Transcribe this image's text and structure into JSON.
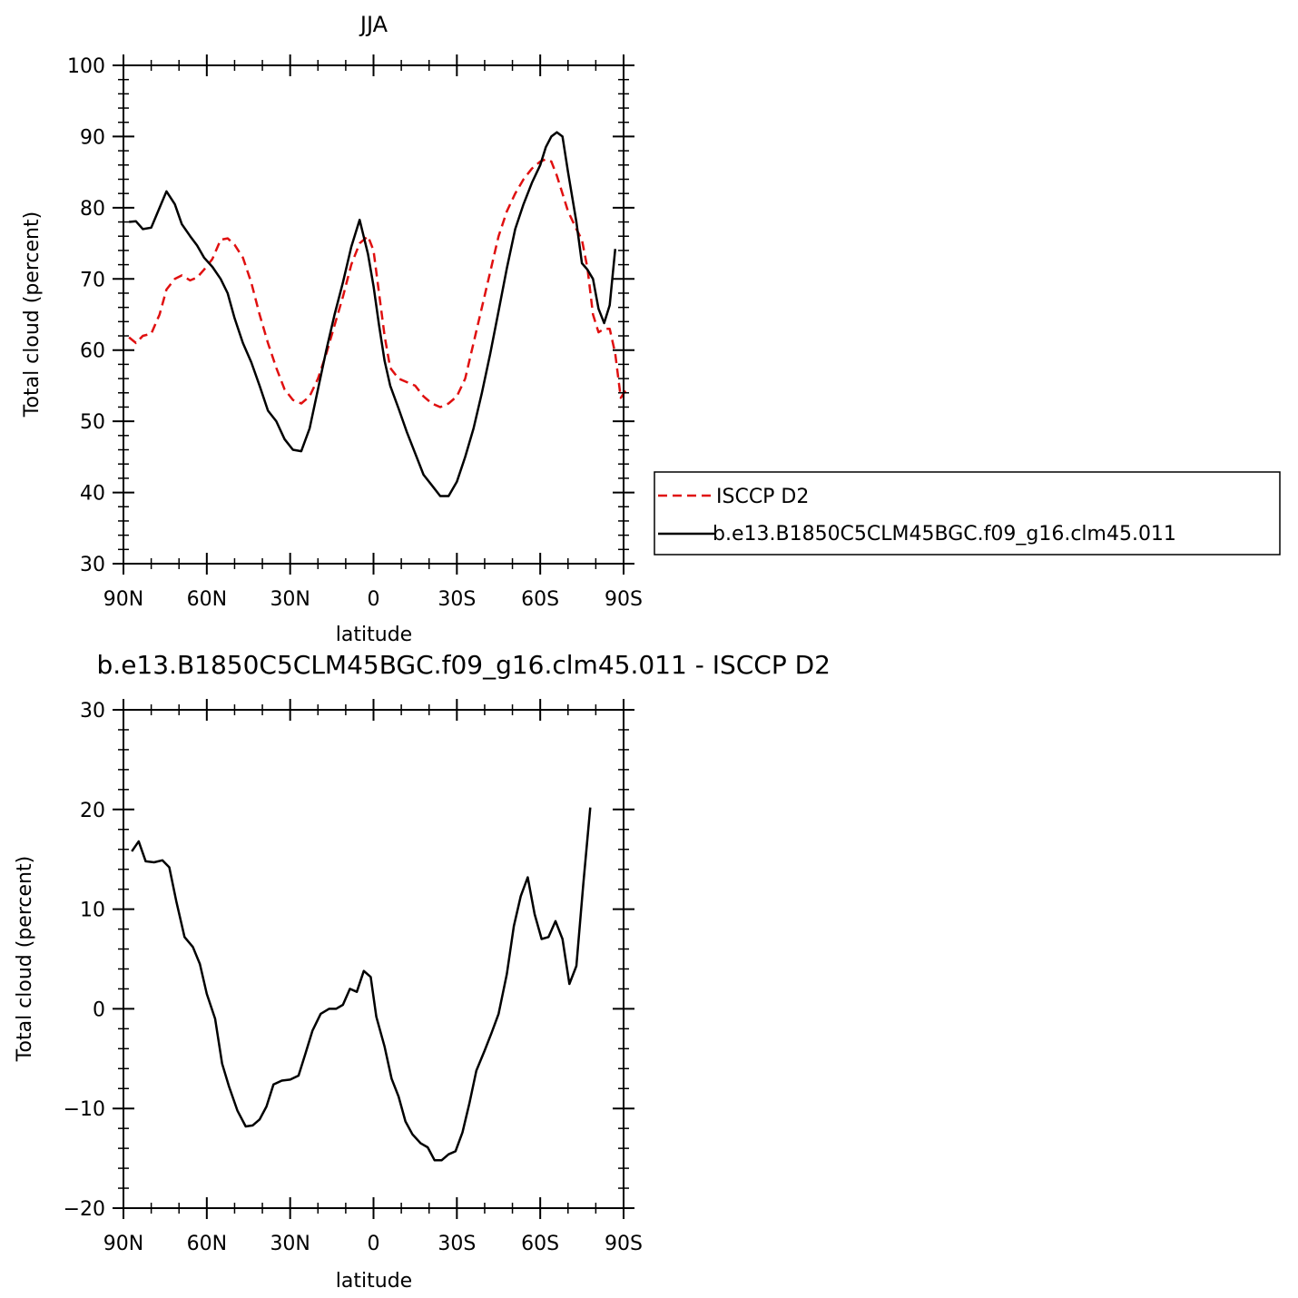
{
  "chart_data": [
    {
      "type": "line",
      "title": "JJA",
      "xlabel": "latitude",
      "ylabel": "Total cloud (percent)",
      "xlim": [
        90,
        -90
      ],
      "ylim": [
        30,
        100
      ],
      "y_ticks": [
        30,
        40,
        50,
        60,
        70,
        80,
        90,
        100
      ],
      "x_ticks": [
        {
          "value": 90,
          "label": "90N"
        },
        {
          "value": 60,
          "label": "60N"
        },
        {
          "value": 30,
          "label": "30N"
        },
        {
          "value": 0,
          "label": "0"
        },
        {
          "value": -30,
          "label": "30S"
        },
        {
          "value": -60,
          "label": "60S"
        },
        {
          "value": -90,
          "label": "90S"
        }
      ],
      "legend": "right",
      "series": [
        {
          "name": "ISCCP D2",
          "color": "#e01010",
          "style": "dashed",
          "points": [
            [
              88,
              61.8
            ],
            [
              85.5,
              61
            ],
            [
              83,
              62
            ],
            [
              80,
              62.3
            ],
            [
              77,
              65
            ],
            [
              74.5,
              68.5
            ],
            [
              71.5,
              70
            ],
            [
              69,
              70.5
            ],
            [
              66,
              69.8
            ],
            [
              63.5,
              70.2
            ],
            [
              61,
              71.3
            ],
            [
              58,
              72.8
            ],
            [
              55,
              75.5
            ],
            [
              52.5,
              75.7
            ],
            [
              50,
              74.8
            ],
            [
              47,
              73
            ],
            [
              44,
              69.5
            ],
            [
              41,
              65
            ],
            [
              38,
              61
            ],
            [
              35,
              57.5
            ],
            [
              32,
              54.5
            ],
            [
              29,
              53
            ],
            [
              26,
              52.5
            ],
            [
              23,
              53.5
            ],
            [
              20,
              56
            ],
            [
              17,
              59.5
            ],
            [
              14,
              63.5
            ],
            [
              11,
              67.5
            ],
            [
              8,
              72
            ],
            [
              5,
              75
            ],
            [
              2,
              76
            ],
            [
              0,
              74
            ],
            [
              -2,
              68
            ],
            [
              -4,
              62
            ],
            [
              -6,
              57.5
            ],
            [
              -9,
              56
            ],
            [
              -12,
              55.5
            ],
            [
              -15,
              55
            ],
            [
              -18,
              53.5
            ],
            [
              -21,
              52.5
            ],
            [
              -24,
              52
            ],
            [
              -27,
              52.5
            ],
            [
              -30,
              53.5
            ],
            [
              -33,
              56
            ],
            [
              -36,
              61
            ],
            [
              -39,
              66
            ],
            [
              -42,
              71
            ],
            [
              -45,
              76
            ],
            [
              -48,
              79.5
            ],
            [
              -51,
              82
            ],
            [
              -54,
              84
            ],
            [
              -57,
              85.5
            ],
            [
              -60,
              86.5
            ],
            [
              -62,
              86.8
            ],
            [
              -64,
              86.5
            ],
            [
              -66,
              84.5
            ],
            [
              -68,
              82
            ],
            [
              -70,
              79.5
            ],
            [
              -73,
              77
            ],
            [
              -75,
              75.5
            ],
            [
              -77,
              71.5
            ],
            [
              -79,
              65
            ],
            [
              -81,
              62.5
            ],
            [
              -83,
              63
            ],
            [
              -85,
              63
            ],
            [
              -87,
              59.5
            ],
            [
              -89,
              53.3
            ],
            [
              -91,
              54.5
            ]
          ]
        },
        {
          "name": "b.e13.B1850C5CLM45BGC.f09_g16.clm45.011",
          "color": "#000000",
          "style": "solid",
          "points": [
            [
              88,
              78
            ],
            [
              85.5,
              78.1
            ],
            [
              83,
              77
            ],
            [
              80,
              77.2
            ],
            [
              77,
              80
            ],
            [
              74.5,
              82.3
            ],
            [
              71.5,
              80.5
            ],
            [
              69,
              77.7
            ],
            [
              66,
              76
            ],
            [
              63.5,
              74.7
            ],
            [
              61,
              73
            ],
            [
              58,
              71.7
            ],
            [
              55,
              70
            ],
            [
              52.5,
              68
            ],
            [
              50,
              64.5
            ],
            [
              47,
              61
            ],
            [
              44,
              58.3
            ],
            [
              41,
              55
            ],
            [
              38,
              51.5
            ],
            [
              35,
              50
            ],
            [
              32,
              47.5
            ],
            [
              29,
              46
            ],
            [
              26,
              45.8
            ],
            [
              23,
              49
            ],
            [
              20,
              54.5
            ],
            [
              17,
              60
            ],
            [
              14,
              65
            ],
            [
              11,
              69.5
            ],
            [
              8,
              74.5
            ],
            [
              5,
              78.3
            ],
            [
              2,
              73.5
            ],
            [
              0,
              69
            ],
            [
              -2,
              63.5
            ],
            [
              -4,
              58.5
            ],
            [
              -6,
              55
            ],
            [
              -9,
              51.8
            ],
            [
              -12,
              48.5
            ],
            [
              -15,
              45.5
            ],
            [
              -18,
              42.5
            ],
            [
              -21,
              41
            ],
            [
              -24,
              39.5
            ],
            [
              -27,
              39.5
            ],
            [
              -30,
              41.5
            ],
            [
              -33,
              45
            ],
            [
              -36,
              49
            ],
            [
              -39,
              54
            ],
            [
              -42,
              59.5
            ],
            [
              -45,
              65.5
            ],
            [
              -48,
              71.5
            ],
            [
              -51,
              77
            ],
            [
              -54,
              80.5
            ],
            [
              -57,
              83.5
            ],
            [
              -60,
              86
            ],
            [
              -62,
              88.5
            ],
            [
              -64,
              90
            ],
            [
              -66,
              90.6
            ],
            [
              -68,
              90
            ],
            [
              -70,
              85
            ],
            [
              -73,
              78
            ],
            [
              -75,
              72.2
            ],
            [
              -77,
              71.3
            ],
            [
              -79,
              70
            ],
            [
              -81,
              65.8
            ],
            [
              -83,
              63.8
            ],
            [
              -85,
              66.3
            ],
            [
              -87,
              74.2
            ]
          ]
        }
      ]
    },
    {
      "type": "line",
      "title": "b.e13.B1850C5CLM45BGC.f09_g16.clm45.011 - ISCCP D2",
      "xlabel": "latitude",
      "ylabel": "Total cloud (percent)",
      "xlim": [
        90,
        -90
      ],
      "ylim": [
        -20,
        30
      ],
      "y_ticks": [
        -20,
        -10,
        0,
        10,
        20,
        30
      ],
      "y_tick_labels": [
        "−20",
        "−10",
        "0",
        "10",
        "20",
        "30"
      ],
      "x_ticks": [
        {
          "value": 90,
          "label": "90N"
        },
        {
          "value": 60,
          "label": "60N"
        },
        {
          "value": 30,
          "label": "30N"
        },
        {
          "value": 0,
          "label": "0"
        },
        {
          "value": -30,
          "label": "30S"
        },
        {
          "value": -60,
          "label": "60S"
        },
        {
          "value": -90,
          "label": "90S"
        }
      ],
      "series": [
        {
          "color": "#000000",
          "style": "solid",
          "points": [
            [
              87,
              15.8
            ],
            [
              84.5,
              16.8
            ],
            [
              82,
              14.8
            ],
            [
              79,
              14.7
            ],
            [
              76,
              14.9
            ],
            [
              73.5,
              14.2
            ],
            [
              71,
              10.8
            ],
            [
              68,
              7.2
            ],
            [
              65,
              6.2
            ],
            [
              62.5,
              4.5
            ],
            [
              60,
              1.5
            ],
            [
              57,
              -1
            ],
            [
              54.5,
              -5.5
            ],
            [
              52,
              -7.8
            ],
            [
              49,
              -10.2
            ],
            [
              46,
              -11.8
            ],
            [
              43.5,
              -11.7
            ],
            [
              41,
              -11.1
            ],
            [
              38.5,
              -9.8
            ],
            [
              36,
              -7.6
            ],
            [
              33,
              -7.2
            ],
            [
              30,
              -7.1
            ],
            [
              27,
              -6.7
            ],
            [
              24.5,
              -4.5
            ],
            [
              22,
              -2.2
            ],
            [
              19,
              -0.5
            ],
            [
              16,
              0
            ],
            [
              13.5,
              0
            ],
            [
              11,
              0.4
            ],
            [
              8.5,
              2
            ],
            [
              6,
              1.7
            ],
            [
              3.5,
              3.8
            ],
            [
              1,
              3.2
            ],
            [
              -1,
              -0.8
            ],
            [
              -4,
              -3.8
            ],
            [
              -6.5,
              -7
            ],
            [
              -9,
              -8.8
            ],
            [
              -11.5,
              -11.3
            ],
            [
              -14,
              -12.6
            ],
            [
              -17,
              -13.5
            ],
            [
              -19.5,
              -13.9
            ],
            [
              -22,
              -15.2
            ],
            [
              -24.5,
              -15.2
            ],
            [
              -27,
              -14.6
            ],
            [
              -29.5,
              -14.3
            ],
            [
              -32,
              -12.4
            ],
            [
              -34.5,
              -9.5
            ],
            [
              -37,
              -6.2
            ],
            [
              -40,
              -4.2
            ],
            [
              -42.5,
              -2.4
            ],
            [
              -45,
              -0.5
            ],
            [
              -48,
              3.5
            ],
            [
              -50.5,
              8.3
            ],
            [
              -53,
              11.3
            ],
            [
              -55.5,
              13.2
            ],
            [
              -58,
              9.5
            ],
            [
              -60.5,
              7
            ],
            [
              -63,
              7.2
            ],
            [
              -65.5,
              8.8
            ],
            [
              -68,
              7
            ],
            [
              -70.5,
              2.5
            ],
            [
              -73,
              4.3
            ],
            [
              -75.5,
              12.5
            ],
            [
              -78,
              20.2
            ]
          ]
        }
      ]
    }
  ]
}
